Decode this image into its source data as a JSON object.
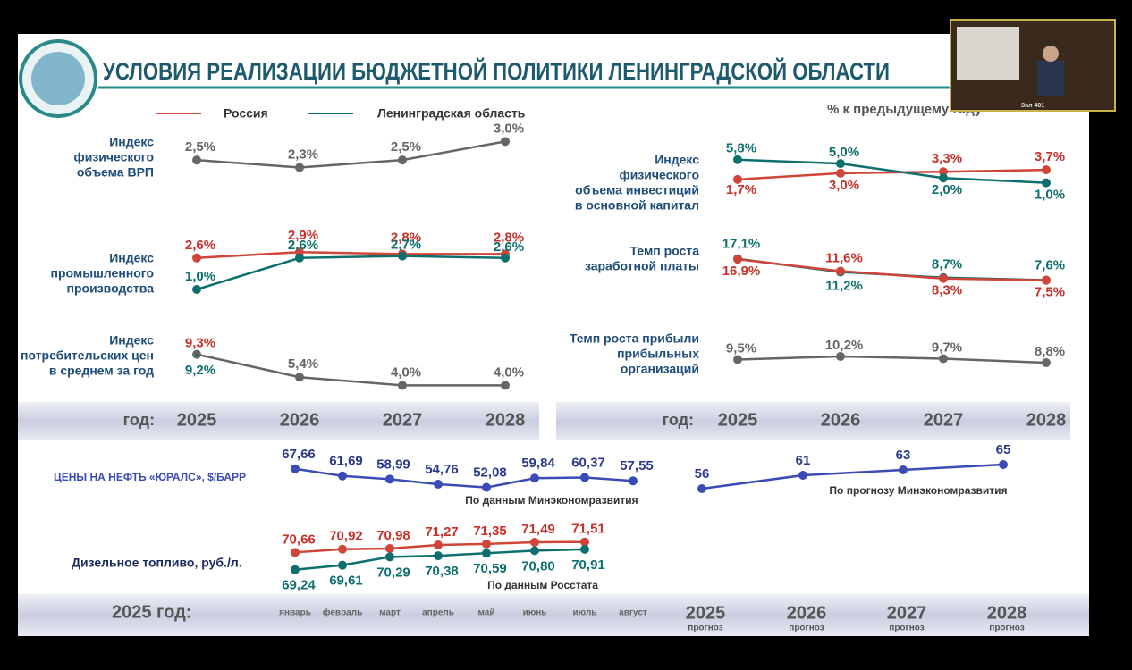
{
  "title": "УСЛОВИЯ РЕАЛИЗАЦИИ БЮДЖЕТНОЙ ПОЛИТИКИ ЛЕНИНГРАДСКОЙ ОБЛАСТИ",
  "legend": [
    {
      "name": "Россия",
      "color": "#d0453a"
    },
    {
      "name": "Ленинградская область",
      "color": "#0e6f6f"
    }
  ],
  "units": "% к предыдущему году",
  "video_caption": "Зал 401",
  "year_row": {
    "label": "год:",
    "years": [
      "2025",
      "2026",
      "2027",
      "2028"
    ]
  },
  "bottom_row": {
    "label": "2025 год:",
    "months": [
      "январь",
      "февраль",
      "март",
      "апрель",
      "май",
      "июнь",
      "июль",
      "август"
    ],
    "years": [
      "2025",
      "2026",
      "2027",
      "2028"
    ],
    "forecast": "прогноз"
  },
  "chart_data": [
    {
      "type": "line",
      "title": [
        "Индекс",
        "физического",
        "объема ВРП"
      ],
      "ylim": [
        2.0,
        3.2
      ],
      "series": [
        {
          "color": "#666666",
          "values": [
            2.5,
            2.3,
            2.5,
            3.0
          ],
          "value_labels": [
            "2,5%",
            "2,3%",
            "2,5%",
            "3,0%"
          ]
        }
      ]
    },
    {
      "type": "line",
      "title": [
        "Индекс",
        "промышленного",
        "производства"
      ],
      "ylim": [
        0.5,
        3.0
      ],
      "series": [
        {
          "color": "#d0453a",
          "values": [
            2.6,
            2.9,
            2.8,
            2.8
          ],
          "value_labels": [
            "2,6%",
            "2,9%",
            "2,8%",
            "2,8%"
          ]
        },
        {
          "color": "#0e6f6f",
          "values": [
            1.0,
            2.6,
            2.7,
            2.6
          ],
          "value_labels": [
            "1,0%",
            "2,6%",
            "2,7%",
            "2,6%"
          ]
        }
      ]
    },
    {
      "type": "line",
      "title": [
        "Индекс",
        "потребительских цен",
        "в среднем за год"
      ],
      "ylim": [
        3,
        10
      ],
      "series": [
        {
          "color": "#666666",
          "values": [
            9.3,
            5.4,
            4.0,
            4.0
          ],
          "value_labels": [
            null,
            "5,4%",
            "4,0%",
            "4,0%"
          ]
        },
        {
          "color": "#d0453a",
          "values": [
            9.3,
            null,
            null,
            null
          ],
          "value_labels": [
            "9,3%",
            null,
            null,
            null
          ]
        },
        {
          "color": "#0e6f6f",
          "values": [
            9.2,
            null,
            null,
            null
          ],
          "value_labels": [
            "9,2%",
            null,
            null,
            null
          ]
        }
      ]
    },
    {
      "type": "line",
      "title": [
        "Индекс",
        "физического",
        "объема инвестиций",
        "в основной капитал"
      ],
      "ylim": [
        0,
        6.5
      ],
      "series": [
        {
          "color": "#d0453a",
          "values": [
            1.7,
            3.0,
            3.3,
            3.7
          ],
          "value_labels": [
            "1,7%",
            "3,0%",
            "3,3%",
            "3,7%"
          ]
        },
        {
          "color": "#0e6f6f",
          "values": [
            5.8,
            5.0,
            2.0,
            1.0
          ],
          "value_labels": [
            "5,8%",
            "5,0%",
            "2,0%",
            "1,0%"
          ]
        }
      ]
    },
    {
      "type": "line",
      "title": [
        "Темп роста",
        "заработной платы"
      ],
      "ylim": [
        5,
        19
      ],
      "series": [
        {
          "color": "#0e6f6f",
          "values": [
            17.1,
            11.2,
            8.7,
            7.6
          ],
          "value_labels": [
            "17,1%",
            "11,2%",
            "8,7%",
            "7,6%"
          ]
        },
        {
          "color": "#d0453a",
          "values": [
            16.9,
            11.6,
            8.3,
            7.5
          ],
          "value_labels": [
            "16,9%",
            "11,6%",
            "8,3%",
            "7,5%"
          ]
        }
      ]
    },
    {
      "type": "line",
      "title": [
        "Темп роста прибыли",
        "прибыльных",
        "организаций"
      ],
      "ylim": [
        8,
        11
      ],
      "series": [
        {
          "color": "#666666",
          "values": [
            9.5,
            10.2,
            9.7,
            8.8
          ],
          "value_labels": [
            "9,5%",
            "10,2%",
            "9,7%",
            "8,8%"
          ]
        }
      ]
    },
    {
      "type": "line",
      "title": [
        "ЦЕНЫ НА НЕФТЬ «ЮРАЛС», $/БАРР"
      ],
      "note": "По данным Минэкономразвития",
      "ylim": [
        45,
        75
      ],
      "series": [
        {
          "color": "#3b4bb5",
          "values": [
            67.66,
            61.69,
            58.99,
            54.76,
            52.08,
            59.84,
            60.37,
            57.55
          ],
          "value_labels": [
            "67,66",
            "61,69",
            "58,99",
            "54,76",
            "52,08",
            "59,84",
            "60,37",
            "57,55"
          ]
        }
      ]
    },
    {
      "type": "line",
      "note": "По прогнозу Минэкономразвития",
      "ylim": [
        50,
        70
      ],
      "series": [
        {
          "color": "#3b4bb5",
          "values": [
            56,
            61,
            63,
            65
          ]
        }
      ]
    },
    {
      "type": "line",
      "title": [
        "Дизельное топливо, руб./л."
      ],
      "note": "По данным Росстата",
      "ylim": [
        69,
        72
      ],
      "series": [
        {
          "color": "#d0453a",
          "values": [
            70.66,
            70.92,
            70.98,
            71.27,
            71.35,
            71.49,
            71.51
          ],
          "value_labels": [
            "70,66",
            "70,92",
            "70,98",
            "71,27",
            "71,35",
            "71,49",
            "71,51"
          ]
        },
        {
          "color": "#0e6f6f",
          "values": [
            69.24,
            69.61,
            70.29,
            70.38,
            70.59,
            70.8,
            70.91
          ],
          "value_labels": [
            "69,24",
            "69,61",
            "70,29",
            "70,38",
            "70,59",
            "70,80",
            "70,91"
          ]
        }
      ]
    }
  ]
}
